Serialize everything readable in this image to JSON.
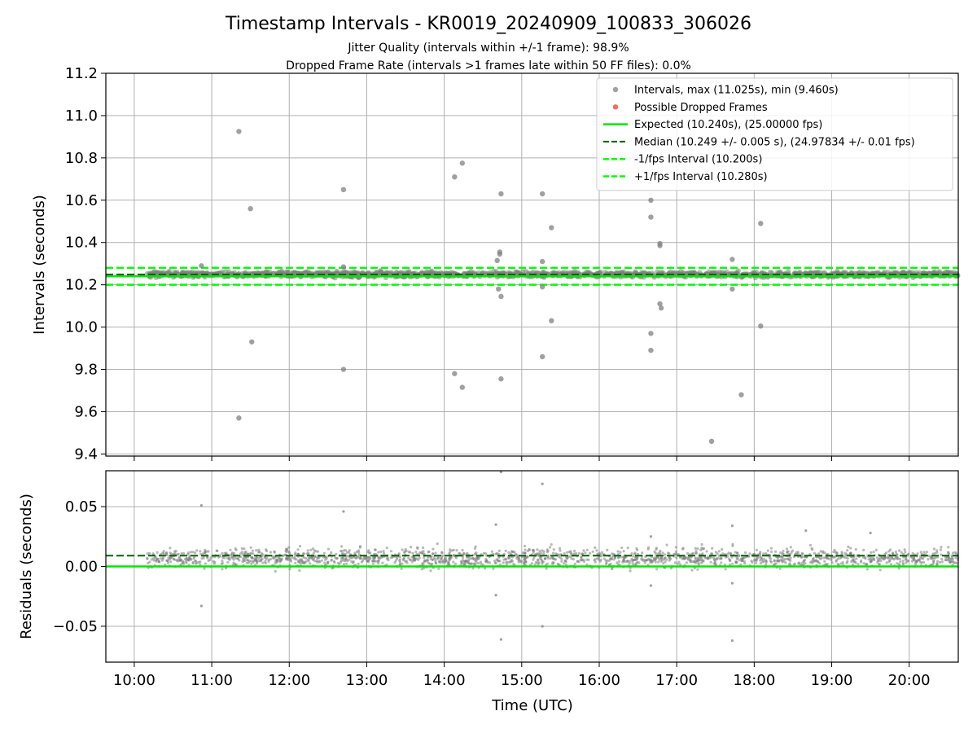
{
  "figure": {
    "title": "Timestamp Intervals - KR0019_20240909_100833_306026",
    "subtitle1": "Jitter Quality (intervals within +/-1 frame): 98.9%",
    "subtitle2": "Dropped Frame Rate (intervals >1 frames late within 50 FF files): 0.0%",
    "xlabel": "Time (UTC)"
  },
  "colors": {
    "points": "#808080",
    "dropped": "#ff0000",
    "expected": "#00e600",
    "median": "#006400",
    "band": "#00ff00",
    "grid": "#b0b0b0"
  },
  "chart_data": [
    {
      "type": "scatter",
      "name": "intervals",
      "ylabel": "Intervals (seconds)",
      "x_range": [
        "09:38",
        "20:38"
      ],
      "ylim": [
        9.39,
        11.2
      ],
      "x_ticks": [
        "10:00",
        "11:00",
        "12:00",
        "13:00",
        "14:00",
        "15:00",
        "16:00",
        "17:00",
        "18:00",
        "19:00",
        "20:00"
      ],
      "y_ticks": [
        "9.4",
        "9.6",
        "9.8",
        "10.0",
        "10.2",
        "10.4",
        "10.6",
        "10.8",
        "11.0",
        "11.2"
      ],
      "grid": true,
      "legend_position": "top-right",
      "legend": [
        {
          "label": "Intervals, max (11.025s), min (9.460s)",
          "kind": "point-gray"
        },
        {
          "label": "Possible Dropped Frames",
          "kind": "point-red"
        },
        {
          "label": "Expected (10.240s), (25.00000 fps)",
          "kind": "line-expected"
        },
        {
          "label": "Median (10.249 +/- 0.005 s), (24.97834 +/- 0.01 fps)",
          "kind": "line-median"
        },
        {
          "label": "-1/fps Interval (10.200s)",
          "kind": "line-band"
        },
        {
          "label": "+1/fps Interval (10.280s)",
          "kind": "line-band"
        }
      ],
      "reference_lines": {
        "expected": 10.24,
        "median": 10.249,
        "lower": 10.2,
        "upper": 10.28
      },
      "dense_band": {
        "x_start": "10:10",
        "x_end": "20:38",
        "center": 10.249,
        "spread": 0.012
      },
      "outliers": [
        {
          "x": "10:52",
          "y": 10.29
        },
        {
          "x": "11:21",
          "y": 10.925
        },
        {
          "x": "11:21",
          "y": 9.57
        },
        {
          "x": "11:30",
          "y": 10.56
        },
        {
          "x": "11:31",
          "y": 9.93
        },
        {
          "x": "12:42",
          "y": 10.65
        },
        {
          "x": "12:42",
          "y": 9.8
        },
        {
          "x": "12:42",
          "y": 10.285
        },
        {
          "x": "14:08",
          "y": 10.71
        },
        {
          "x": "14:14",
          "y": 10.775
        },
        {
          "x": "14:08",
          "y": 9.78
        },
        {
          "x": "14:14",
          "y": 9.715
        },
        {
          "x": "14:44",
          "y": 10.63
        },
        {
          "x": "14:43",
          "y": 10.355
        },
        {
          "x": "14:43",
          "y": 10.345
        },
        {
          "x": "14:41",
          "y": 10.315
        },
        {
          "x": "14:42",
          "y": 10.18
        },
        {
          "x": "14:44",
          "y": 10.145
        },
        {
          "x": "14:44",
          "y": 9.755
        },
        {
          "x": "15:16",
          "y": 10.63
        },
        {
          "x": "15:16",
          "y": 10.31
        },
        {
          "x": "15:16",
          "y": 10.19
        },
        {
          "x": "15:16",
          "y": 9.86
        },
        {
          "x": "15:23",
          "y": 10.47
        },
        {
          "x": "15:23",
          "y": 10.03
        },
        {
          "x": "16:40",
          "y": 10.6
        },
        {
          "x": "16:40",
          "y": 10.52
        },
        {
          "x": "16:40",
          "y": 9.97
        },
        {
          "x": "16:40",
          "y": 9.89
        },
        {
          "x": "16:47",
          "y": 10.395
        },
        {
          "x": "16:47",
          "y": 10.385
        },
        {
          "x": "16:47",
          "y": 10.11
        },
        {
          "x": "16:48",
          "y": 10.09
        },
        {
          "x": "17:27",
          "y": 9.46
        },
        {
          "x": "17:43",
          "y": 10.32
        },
        {
          "x": "17:43",
          "y": 10.18
        },
        {
          "x": "17:50",
          "y": 9.68
        },
        {
          "x": "18:05",
          "y": 10.49
        },
        {
          "x": "18:05",
          "y": 10.005
        }
      ]
    },
    {
      "type": "scatter",
      "name": "residuals",
      "ylabel": "Residuals (seconds)",
      "x_range": [
        "09:38",
        "20:38"
      ],
      "ylim": [
        -0.08,
        0.08
      ],
      "x_ticks": [
        "10:00",
        "11:00",
        "12:00",
        "13:00",
        "14:00",
        "15:00",
        "16:00",
        "17:00",
        "18:00",
        "19:00",
        "20:00"
      ],
      "y_ticks": [
        "−0.05",
        "0.00",
        "0.05"
      ],
      "grid": true,
      "reference_lines": {
        "zero": 0.0,
        "median": 0.009
      },
      "dense_band": {
        "x_start": "10:10",
        "x_end": "20:38",
        "center": 0.007,
        "spread": 0.008
      },
      "outliers": [
        {
          "x": "10:52",
          "y": 0.051
        },
        {
          "x": "10:52",
          "y": -0.033
        },
        {
          "x": "12:42",
          "y": 0.046
        },
        {
          "x": "14:40",
          "y": 0.035
        },
        {
          "x": "14:40",
          "y": -0.024
        },
        {
          "x": "14:44",
          "y": -0.061
        },
        {
          "x": "14:44",
          "y": 0.079
        },
        {
          "x": "15:16",
          "y": 0.069
        },
        {
          "x": "15:16",
          "y": -0.05
        },
        {
          "x": "16:40",
          "y": 0.025
        },
        {
          "x": "16:40",
          "y": -0.016
        },
        {
          "x": "17:43",
          "y": 0.034
        },
        {
          "x": "17:43",
          "y": -0.014
        },
        {
          "x": "17:43",
          "y": -0.062
        },
        {
          "x": "18:40",
          "y": 0.03
        },
        {
          "x": "19:30",
          "y": 0.028
        }
      ]
    }
  ]
}
